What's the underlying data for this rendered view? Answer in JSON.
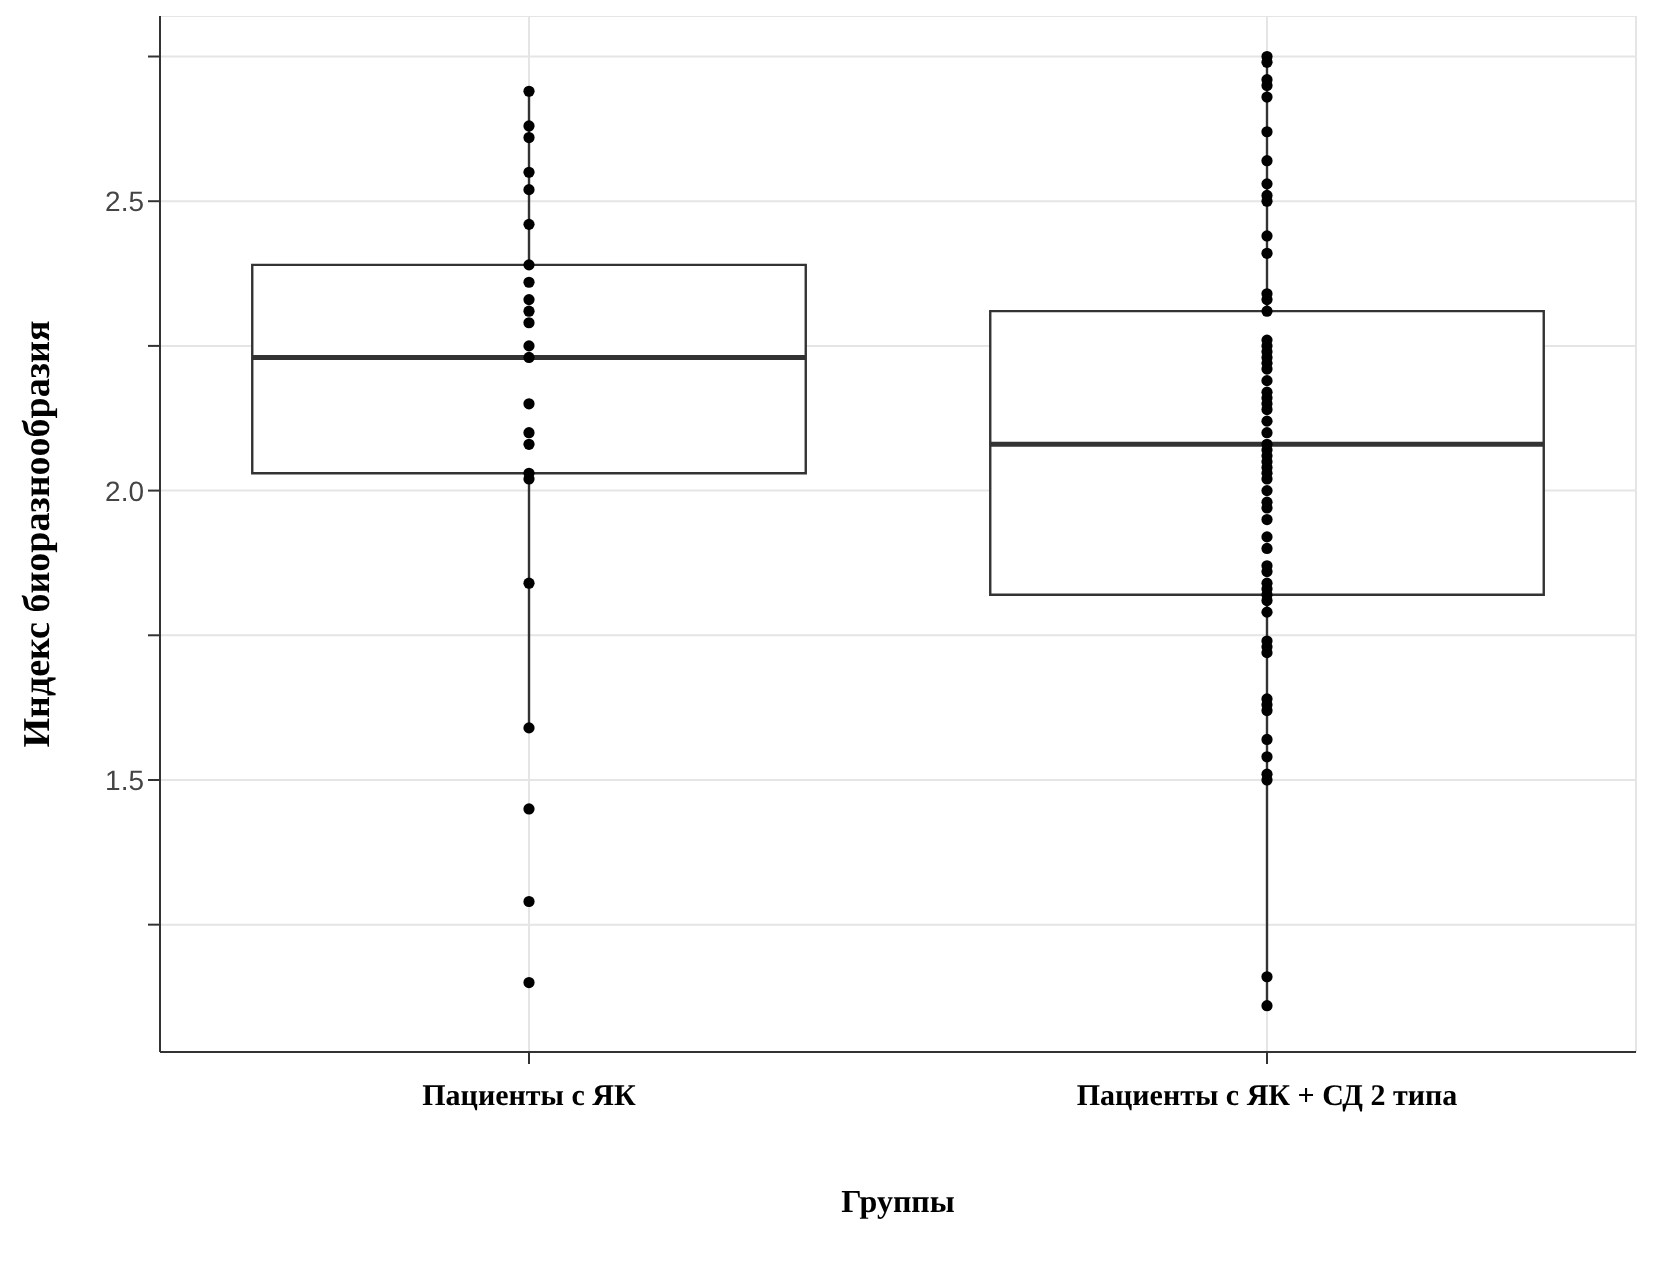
{
  "chart_data": {
    "type": "box",
    "xlabel": "Группы",
    "ylabel": "Индекс биоразнообразия",
    "categories": [
      "Пациенты с ЯК",
      "Пациенты с ЯК + СД 2 типа"
    ],
    "boxes": [
      {
        "low": 1.59,
        "q1": 2.03,
        "median": 2.23,
        "q3": 2.39,
        "high": 2.69
      },
      {
        "low": 1.11,
        "q1": 1.82,
        "median": 2.08,
        "q3": 2.31,
        "high": 2.74
      }
    ],
    "ylim": [
      1.03,
      2.82
    ],
    "yticks": [
      {
        "value": 1.25,
        "label": null
      },
      1.5,
      {
        "value": 1.75,
        "label": null
      },
      {
        "value": 2,
        "label": "2.0"
      },
      {
        "value": 2.25,
        "label": null
      },
      2.5,
      {
        "value": 2.75,
        "label": null
      }
    ],
    "grid": true,
    "series": [
      {
        "type": "scatter",
        "color": "#000000",
        "marker": "circle",
        "x": [
          "Пациенты с ЯК",
          "Пациенты с ЯК",
          "Пациенты с ЯК",
          "Пациенты с ЯК",
          "Пациенты с ЯК",
          "Пациенты с ЯК",
          "Пациенты с ЯК",
          "Пациенты с ЯК",
          "Пациенты с ЯК",
          "Пациенты с ЯК",
          "Пациенты с ЯК",
          "Пациенты с ЯК",
          "Пациенты с ЯК",
          "Пациенты с ЯК",
          "Пациенты с ЯК",
          "Пациенты с ЯК",
          "Пациенты с ЯК",
          "Пациенты с ЯК",
          "Пациенты с ЯК",
          "Пациенты с ЯК",
          "Пациенты с ЯК",
          "Пациенты с ЯК",
          "Пациенты с ЯК",
          "Пациенты с ЯК + СД 2 типа",
          "Пациенты с ЯК + СД 2 типа",
          "Пациенты с ЯК + СД 2 типа",
          "Пациенты с ЯК + СД 2 типа",
          "Пациенты с ЯК + СД 2 типа",
          "Пациенты с ЯК + СД 2 типа",
          "Пациенты с ЯК + СД 2 типа",
          "Пациенты с ЯК + СД 2 типа",
          "Пациенты с ЯК + СД 2 типа",
          "Пациенты с ЯК + СД 2 типа",
          "Пациенты с ЯК + СД 2 типа",
          "Пациенты с ЯК + СД 2 типа",
          "Пациенты с ЯК + СД 2 типа",
          "Пациенты с ЯК + СД 2 типа",
          "Пациенты с ЯК + СД 2 типа",
          "Пациенты с ЯК + СД 2 типа",
          "Пациенты с ЯК + СД 2 типа",
          "Пациенты с ЯК + СД 2 типа",
          "Пациенты с ЯК + СД 2 типа",
          "Пациенты с ЯК + СД 2 типа",
          "Пациенты с ЯК + СД 2 типа",
          "Пациенты с ЯК + СД 2 типа",
          "Пациенты с ЯК + СД 2 типа",
          "Пациенты с ЯК + СД 2 типа",
          "Пациенты с ЯК + СД 2 типа",
          "Пациенты с ЯК + СД 2 типа",
          "Пациенты с ЯК + СД 2 типа",
          "Пациенты с ЯК + СД 2 типа",
          "Пациенты с ЯК + СД 2 типа",
          "Пациенты с ЯК + СД 2 типа",
          "Пациенты с ЯК + СД 2 типа",
          "Пациенты с ЯК + СД 2 типа",
          "Пациенты с ЯК + СД 2 типа",
          "Пациенты с ЯК + СД 2 типа",
          "Пациенты с ЯК + СД 2 типа",
          "Пациенты с ЯК + СД 2 типа",
          "Пациенты с ЯК + СД 2 типа",
          "Пациенты с ЯК + СД 2 типа",
          "Пациенты с ЯК + СД 2 типа",
          "Пациенты с ЯК + СД 2 типа",
          "Пациенты с ЯК + СД 2 типа",
          "Пациенты с ЯК + СД 2 типа",
          "Пациенты с ЯК + СД 2 типа",
          "Пациенты с ЯК + СД 2 типа",
          "Пациенты с ЯК + СД 2 типа",
          "Пациенты с ЯК + СД 2 типа",
          "Пациенты с ЯК + СД 2 типа",
          "Пациенты с ЯК + СД 2 типа",
          "Пациенты с ЯК + СД 2 типа",
          "Пациенты с ЯК + СД 2 типа",
          "Пациенты с ЯК + СД 2 типа",
          "Пациенты с ЯК + СД 2 типа",
          "Пациенты с ЯК + СД 2 типа",
          "Пациенты с ЯК + СД 2 типа",
          "Пациенты с ЯК + СД 2 типа",
          "Пациенты с ЯК + СД 2 типа",
          "Пациенты с ЯК + СД 2 типа",
          "Пациенты с ЯК + СД 2 типа",
          "Пациенты с ЯК + СД 2 типа",
          "Пациенты с ЯК + СД 2 типа"
        ],
        "values": [
          2.69,
          2.52,
          2.55,
          2.63,
          2.61,
          2.46,
          2.39,
          2.29,
          2.25,
          2.23,
          2.36,
          2.31,
          2.33,
          2.15,
          2.1,
          2.08,
          2.03,
          2.02,
          1.84,
          1.59,
          1.45,
          1.29,
          1.15,
          2.75,
          2.71,
          2.68,
          2.74,
          2.7,
          2.62,
          2.57,
          2.53,
          2.51,
          2.5,
          2.44,
          2.41,
          2.33,
          2.34,
          2.31,
          2.26,
          2.25,
          2.24,
          2.23,
          2.22,
          2.21,
          2.19,
          2.17,
          2.16,
          2.15,
          2.14,
          2.12,
          2.1,
          2.08,
          2.07,
          2.06,
          2.05,
          2.04,
          2.03,
          2.02,
          2.0,
          1.98,
          1.97,
          1.95,
          1.92,
          1.9,
          1.87,
          1.86,
          1.84,
          1.83,
          1.82,
          1.81,
          1.79,
          1.74,
          1.73,
          1.72,
          1.64,
          1.63,
          1.62,
          1.57,
          1.54,
          1.51,
          1.5,
          1.16,
          1.11
        ]
      }
    ]
  }
}
